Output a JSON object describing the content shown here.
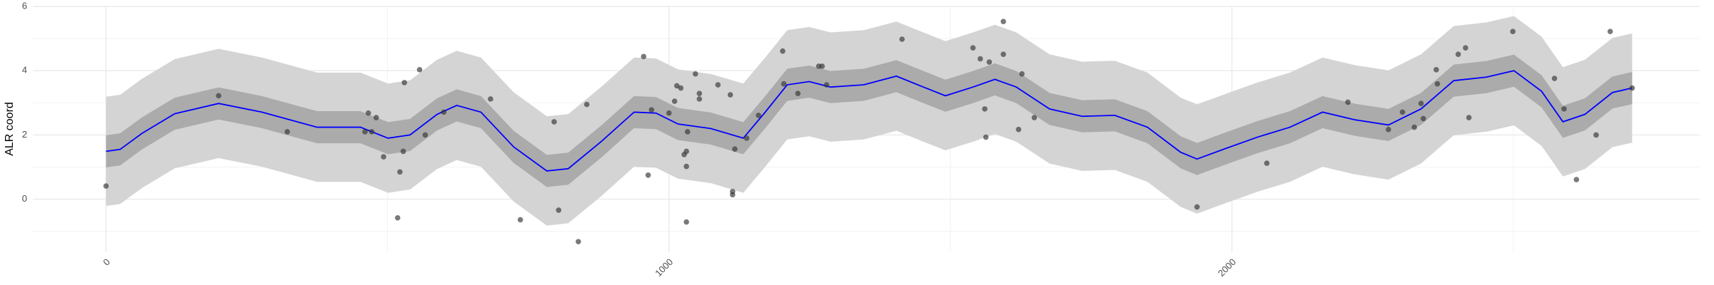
{
  "chart_data": {
    "type": "line",
    "y_label": "ALR coord",
    "xlim": [
      -130,
      2831
    ],
    "ylim": [
      -1.65,
      6
    ],
    "xticks": [
      0,
      1000,
      2000
    ],
    "yticks": [
      0,
      2,
      4,
      6
    ],
    "grid": true,
    "x": [
      0,
      25,
      64,
      122,
      200,
      277,
      375,
      452,
      501,
      540,
      588,
      623,
      666,
      724,
      783,
      821,
      880,
      938,
      977,
      1016,
      1074,
      1132,
      1171,
      1210,
      1249,
      1287,
      1346,
      1404,
      1452,
      1491,
      1540,
      1579,
      1617,
      1676,
      1734,
      1792,
      1850,
      1909,
      1938,
      1986,
      2045,
      2103,
      2161,
      2219,
      2278,
      2336,
      2394,
      2452,
      2501,
      2550,
      2588,
      2627,
      2676,
      2711
    ],
    "line": {
      "color": "#0000ff",
      "values": [
        1.49,
        1.55,
        2.05,
        2.66,
        2.98,
        2.71,
        2.24,
        2.24,
        1.9,
        2.0,
        2.64,
        2.92,
        2.71,
        1.63,
        0.88,
        0.95,
        1.8,
        2.71,
        2.68,
        2.34,
        2.2,
        1.9,
        2.71,
        3.56,
        3.66,
        3.49,
        3.56,
        3.83,
        3.49,
        3.22,
        3.49,
        3.73,
        3.49,
        2.81,
        2.58,
        2.61,
        2.24,
        1.46,
        1.25,
        1.56,
        1.93,
        2.24,
        2.71,
        2.47,
        2.31,
        2.81,
        3.69,
        3.8,
        4.0,
        3.36,
        2.41,
        2.64,
        3.32,
        3.46
      ]
    },
    "bands": [
      {
        "color": "#d4d4d4",
        "lower": [
          -0.21,
          -0.15,
          0.35,
          0.96,
          1.28,
          1.01,
          0.54,
          0.54,
          0.2,
          0.3,
          0.94,
          1.22,
          1.01,
          -0.07,
          -0.82,
          -0.75,
          0.1,
          1.01,
          0.98,
          0.64,
          0.5,
          0.2,
          1.01,
          1.86,
          1.96,
          1.79,
          1.86,
          2.13,
          1.79,
          1.52,
          1.79,
          2.03,
          1.79,
          1.11,
          0.88,
          0.91,
          0.54,
          -0.24,
          -0.45,
          -0.14,
          0.23,
          0.54,
          1.01,
          0.77,
          0.61,
          1.11,
          1.99,
          2.1,
          2.3,
          1.66,
          0.71,
          0.94,
          1.62,
          1.76
        ],
        "upper": [
          3.19,
          3.25,
          3.75,
          4.36,
          4.68,
          4.41,
          3.94,
          3.94,
          3.6,
          3.7,
          4.34,
          4.62,
          4.41,
          3.33,
          2.58,
          2.65,
          3.5,
          4.41,
          4.38,
          4.04,
          3.9,
          3.6,
          4.41,
          5.26,
          5.36,
          5.19,
          5.26,
          5.53,
          5.19,
          4.92,
          5.19,
          5.43,
          5.19,
          4.51,
          4.28,
          4.31,
          3.94,
          3.16,
          2.95,
          3.26,
          3.63,
          3.94,
          4.41,
          4.17,
          4.01,
          4.51,
          5.39,
          5.5,
          5.7,
          5.06,
          4.11,
          4.34,
          5.02,
          5.16
        ]
      },
      {
        "color": "#ababab",
        "lower": [
          0.99,
          1.05,
          1.55,
          2.16,
          2.48,
          2.21,
          1.74,
          1.74,
          1.4,
          1.5,
          2.14,
          2.42,
          2.21,
          1.13,
          0.38,
          0.45,
          1.3,
          2.21,
          2.18,
          1.84,
          1.7,
          1.4,
          2.21,
          3.06,
          3.16,
          2.99,
          3.06,
          3.33,
          2.99,
          2.72,
          2.99,
          3.23,
          2.99,
          2.31,
          2.08,
          2.11,
          1.74,
          0.96,
          0.75,
          1.06,
          1.43,
          1.74,
          2.21,
          1.97,
          1.81,
          2.31,
          3.19,
          3.3,
          3.5,
          2.86,
          1.91,
          2.14,
          2.82,
          2.96
        ],
        "upper": [
          1.99,
          2.05,
          2.55,
          3.16,
          3.48,
          3.21,
          2.74,
          2.74,
          2.4,
          2.5,
          3.14,
          3.42,
          3.21,
          2.13,
          1.38,
          1.45,
          2.3,
          3.21,
          3.18,
          2.84,
          2.7,
          2.4,
          3.21,
          4.06,
          4.16,
          3.99,
          4.06,
          4.33,
          3.99,
          3.72,
          3.99,
          4.23,
          3.99,
          3.31,
          3.08,
          3.11,
          2.74,
          1.96,
          1.75,
          2.06,
          2.43,
          2.74,
          3.21,
          2.97,
          2.81,
          3.31,
          4.19,
          4.3,
          4.5,
          3.86,
          2.91,
          3.14,
          3.82,
          3.96
        ]
      }
    ],
    "points": {
      "color": "#333333",
      "x": [
        0,
        200,
        322,
        460,
        466,
        472,
        480,
        493,
        518,
        522,
        528,
        530,
        557,
        567,
        600,
        683,
        736,
        796,
        804,
        839,
        854,
        955,
        963,
        969,
        1000,
        1010,
        1014,
        1021,
        1027,
        1031,
        1031,
        1033,
        1031,
        1047,
        1054,
        1054,
        1087,
        1109,
        1113,
        1113,
        1117,
        1138,
        1159,
        1202,
        1204,
        1229,
        1266,
        1272,
        1280,
        1414,
        1540,
        1553,
        1561,
        1563,
        1569,
        1594,
        1594,
        1621,
        1627,
        1649,
        1938,
        2062,
        2206,
        2278,
        2303,
        2324,
        2336,
        2340,
        2363,
        2365,
        2402,
        2415,
        2421,
        2499,
        2573,
        2590,
        2612,
        2647,
        2672,
        2711
      ],
      "y": [
        0.41,
        3.22,
        2.1,
        2.1,
        2.68,
        2.1,
        2.54,
        1.32,
        -0.58,
        0.85,
        1.49,
        3.63,
        4.03,
        2.0,
        2.71,
        3.12,
        -0.64,
        2.41,
        -0.34,
        -1.32,
        2.95,
        4.44,
        0.75,
        2.78,
        2.68,
        3.05,
        3.53,
        3.46,
        1.39,
        1.49,
        1.02,
        2.1,
        -0.71,
        3.9,
        3.29,
        3.12,
        3.56,
        3.25,
        0.24,
        0.14,
        1.56,
        1.9,
        2.61,
        4.61,
        3.59,
        3.29,
        4.14,
        4.14,
        3.56,
        4.98,
        4.71,
        4.37,
        2.81,
        1.93,
        4.27,
        5.53,
        4.51,
        2.17,
        3.9,
        2.54,
        -0.24,
        1.12,
        3.02,
        2.17,
        2.71,
        2.24,
        2.98,
        2.51,
        4.03,
        3.59,
        4.51,
        4.71,
        2.54,
        5.22,
        3.76,
        2.81,
        0.61,
        2.0,
        5.22,
        3.46
      ]
    }
  }
}
